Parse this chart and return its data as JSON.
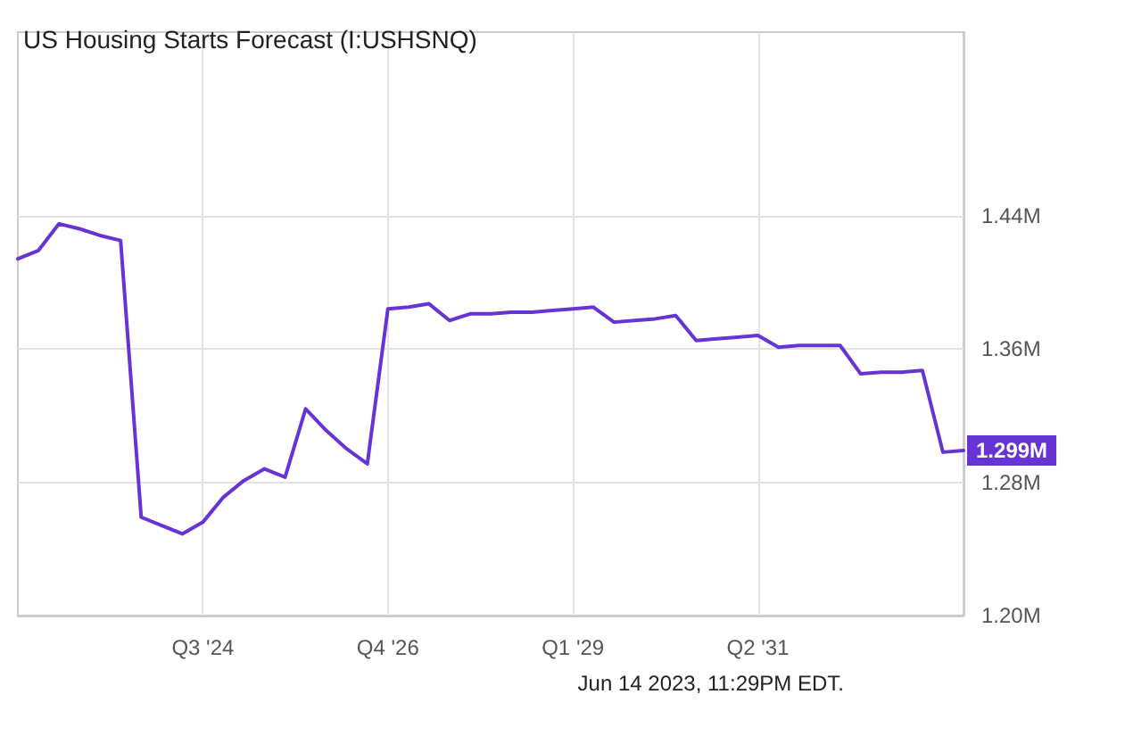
{
  "chart_data": {
    "type": "line",
    "title": "US Housing Starts Forecast (I:USHSNQ)",
    "categories": [
      null,
      null,
      null,
      null,
      null,
      null,
      null,
      null,
      null,
      "Q3 '24",
      null,
      null,
      null,
      null,
      null,
      null,
      null,
      null,
      "Q4 '26",
      null,
      null,
      null,
      null,
      null,
      null,
      null,
      null,
      "Q1 '29",
      null,
      null,
      null,
      null,
      null,
      null,
      null,
      null,
      "Q2 '31",
      null,
      null,
      null,
      null,
      null,
      null,
      null,
      null,
      null,
      null
    ],
    "series": [
      {
        "color": "#6634d4",
        "values": [
          1.414,
          1.419,
          1.435,
          1.432,
          1.428,
          1.425,
          1.259,
          1.254,
          1.249,
          1.256,
          1.271,
          1.281,
          1.288,
          1.283,
          1.324,
          1.311,
          1.3,
          1.291,
          1.384,
          1.385,
          1.387,
          1.377,
          1.381,
          1.381,
          1.382,
          1.382,
          1.383,
          1.384,
          1.385,
          1.376,
          1.377,
          1.378,
          1.38,
          1.365,
          1.366,
          1.367,
          1.368,
          1.361,
          1.362,
          1.362,
          1.362,
          1.345,
          1.346,
          1.346,
          1.347,
          1.298,
          1.299
        ],
        "value_labels": [
          null,
          null,
          null,
          null,
          null,
          null,
          null,
          null,
          null,
          null,
          null,
          null,
          null,
          null,
          null,
          null,
          null,
          null,
          null,
          null,
          null,
          null,
          null,
          null,
          null,
          null,
          null,
          null,
          null,
          null,
          null,
          null,
          null,
          null,
          null,
          null,
          null,
          null,
          null,
          null,
          null,
          null,
          null,
          null,
          null,
          null,
          "1.299M"
        ]
      }
    ],
    "ylim": [
      1.2,
      1.55
    ],
    "yticks": [
      {
        "value": 1.2,
        "label": "1.20M"
      },
      {
        "value": 1.28,
        "label": "1.28M"
      },
      {
        "value": 1.36,
        "label": "1.36M"
      },
      {
        "value": 1.44,
        "label": "1.44M"
      }
    ],
    "grid": true,
    "marker": "none",
    "line_style": "solid",
    "annotations": [
      "Jun 14 2023, 11:29PM EDT."
    ]
  }
}
